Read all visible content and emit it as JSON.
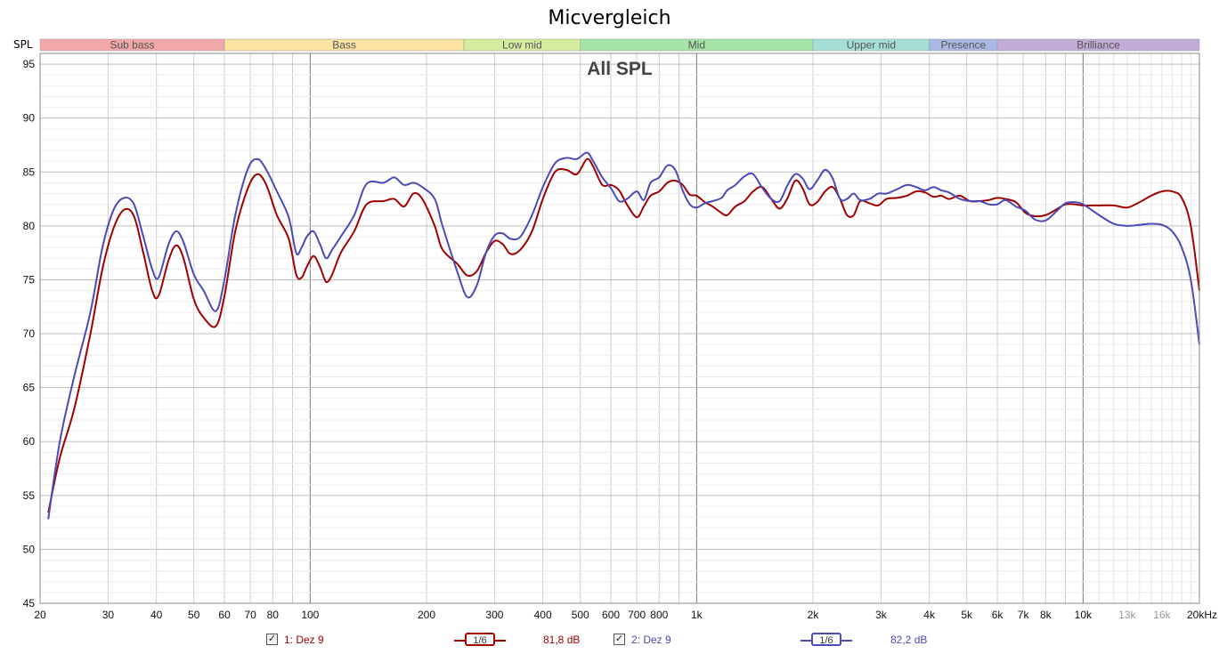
{
  "title": "Micvergleich",
  "y_axis_label": "SPL",
  "chart_data": {
    "type": "line",
    "title": "Micvergleich",
    "subtitle": "All SPL",
    "ylabel": "SPL",
    "xscale": "log",
    "xlim": [
      20,
      20000
    ],
    "ylim": [
      45,
      96
    ],
    "grid": true,
    "yticks": [
      45,
      50,
      55,
      60,
      65,
      70,
      75,
      80,
      85,
      90,
      95
    ],
    "xticks": [
      {
        "v": 20,
        "label": "20"
      },
      {
        "v": 30,
        "label": "30"
      },
      {
        "v": 40,
        "label": "40"
      },
      {
        "v": 50,
        "label": "50"
      },
      {
        "v": 60,
        "label": "60"
      },
      {
        "v": 70,
        "label": "70"
      },
      {
        "v": 80,
        "label": "80"
      },
      {
        "v": 100,
        "label": "100"
      },
      {
        "v": 200,
        "label": "200"
      },
      {
        "v": 300,
        "label": "300"
      },
      {
        "v": 400,
        "label": "400"
      },
      {
        "v": 500,
        "label": "500"
      },
      {
        "v": 600,
        "label": "600"
      },
      {
        "v": 700,
        "label": "700"
      },
      {
        "v": 800,
        "label": "800"
      },
      {
        "v": 1000,
        "label": "1k"
      },
      {
        "v": 2000,
        "label": "2k"
      },
      {
        "v": 3000,
        "label": "3k"
      },
      {
        "v": 4000,
        "label": "4k"
      },
      {
        "v": 5000,
        "label": "5k"
      },
      {
        "v": 6000,
        "label": "6k"
      },
      {
        "v": 7000,
        "label": "7k"
      },
      {
        "v": 8000,
        "label": "8k"
      },
      {
        "v": 10000,
        "label": "10k"
      },
      {
        "v": 13000,
        "label": "13k"
      },
      {
        "v": 16000,
        "label": "16k"
      },
      {
        "v": 20000,
        "label": "20kHz"
      }
    ],
    "bands": [
      {
        "name": "Sub bass",
        "from": 20,
        "to": 60,
        "color": "#f2a8a8"
      },
      {
        "name": "Bass",
        "from": 60,
        "to": 250,
        "color": "#fbe3a0"
      },
      {
        "name": "Low mid",
        "from": 250,
        "to": 500,
        "color": "#d6eda0"
      },
      {
        "name": "Mid",
        "from": 500,
        "to": 2000,
        "color": "#a4e4a6"
      },
      {
        "name": "Upper mid",
        "from": 2000,
        "to": 4000,
        "color": "#a6dfd6"
      },
      {
        "name": "Presence",
        "from": 4000,
        "to": 6000,
        "color": "#a8b8e2"
      },
      {
        "name": "Brilliance",
        "from": 6000,
        "to": 20000,
        "color": "#c2acd6"
      }
    ],
    "series": [
      {
        "name": "1: Dez 9",
        "color": "#a00000",
        "avg_label": "81,8 dB",
        "points": [
          [
            21,
            53.4
          ],
          [
            22.5,
            58.5
          ],
          [
            24.5,
            63
          ],
          [
            27,
            70
          ],
          [
            29,
            76
          ],
          [
            31,
            79.8
          ],
          [
            33,
            81.5
          ],
          [
            35,
            80.9
          ],
          [
            37,
            77.5
          ],
          [
            39,
            74
          ],
          [
            40.5,
            73.5
          ],
          [
            43,
            76.8
          ],
          [
            45,
            78.2
          ],
          [
            47,
            77
          ],
          [
            50,
            73.2
          ],
          [
            53,
            71.5
          ],
          [
            57,
            70.7
          ],
          [
            60,
            73.5
          ],
          [
            64,
            79.5
          ],
          [
            69,
            83.5
          ],
          [
            73,
            84.8
          ],
          [
            77,
            83.8
          ],
          [
            82,
            81
          ],
          [
            88,
            78.8
          ],
          [
            92,
            75.5
          ],
          [
            95,
            75.2
          ],
          [
            98,
            76.2
          ],
          [
            102,
            77.2
          ],
          [
            106,
            76.2
          ],
          [
            110,
            74.8
          ],
          [
            114,
            75.5
          ],
          [
            120,
            77.5
          ],
          [
            130,
            79.5
          ],
          [
            140,
            82
          ],
          [
            155,
            82.3
          ],
          [
            165,
            82.5
          ],
          [
            175,
            81.8
          ],
          [
            185,
            83
          ],
          [
            195,
            82.5
          ],
          [
            210,
            80
          ],
          [
            220,
            77.8
          ],
          [
            240,
            76.5
          ],
          [
            255,
            75.4
          ],
          [
            270,
            75.8
          ],
          [
            285,
            77.5
          ],
          [
            300,
            78.6
          ],
          [
            315,
            78.3
          ],
          [
            330,
            77.4
          ],
          [
            350,
            77.8
          ],
          [
            375,
            79.5
          ],
          [
            400,
            82.5
          ],
          [
            430,
            85
          ],
          [
            460,
            85.2
          ],
          [
            490,
            84.8
          ],
          [
            520,
            86.2
          ],
          [
            540,
            85.5
          ],
          [
            570,
            83.8
          ],
          [
            600,
            83.8
          ],
          [
            630,
            83.3
          ],
          [
            660,
            82
          ],
          [
            700,
            80.8
          ],
          [
            730,
            81.8
          ],
          [
            760,
            82.8
          ],
          [
            800,
            83.2
          ],
          [
            840,
            84
          ],
          [
            880,
            84.2
          ],
          [
            920,
            83.8
          ],
          [
            960,
            82.9
          ],
          [
            1000,
            82.8
          ],
          [
            1050,
            82.2
          ],
          [
            1100,
            81.8
          ],
          [
            1160,
            81.2
          ],
          [
            1200,
            81
          ],
          [
            1260,
            81.8
          ],
          [
            1330,
            82.3
          ],
          [
            1400,
            83.2
          ],
          [
            1480,
            83.6
          ],
          [
            1560,
            82.5
          ],
          [
            1640,
            81.6
          ],
          [
            1720,
            82.6
          ],
          [
            1800,
            84.2
          ],
          [
            1880,
            83.5
          ],
          [
            1960,
            82
          ],
          [
            2050,
            82.2
          ],
          [
            2150,
            83.2
          ],
          [
            2250,
            83.6
          ],
          [
            2350,
            82.5
          ],
          [
            2450,
            81
          ],
          [
            2550,
            81
          ],
          [
            2650,
            82.3
          ],
          [
            2800,
            82.1
          ],
          [
            2950,
            81.9
          ],
          [
            3100,
            82.5
          ],
          [
            3300,
            82.6
          ],
          [
            3500,
            82.8
          ],
          [
            3700,
            83.2
          ],
          [
            3900,
            83.1
          ],
          [
            4100,
            82.7
          ],
          [
            4300,
            82.8
          ],
          [
            4500,
            82.5
          ],
          [
            4800,
            82.8
          ],
          [
            5100,
            82.3
          ],
          [
            5400,
            82.3
          ],
          [
            5700,
            82.4
          ],
          [
            6000,
            82.6
          ],
          [
            6300,
            82.5
          ],
          [
            6700,
            82.2
          ],
          [
            7100,
            81.2
          ],
          [
            7500,
            80.9
          ],
          [
            8000,
            81
          ],
          [
            8500,
            81.5
          ],
          [
            9000,
            82
          ],
          [
            9500,
            82
          ],
          [
            10000,
            81.9
          ],
          [
            11000,
            81.9
          ],
          [
            12000,
            81.9
          ],
          [
            13000,
            81.7
          ],
          [
            14000,
            82.2
          ],
          [
            15000,
            82.8
          ],
          [
            16000,
            83.2
          ],
          [
            17000,
            83.2
          ],
          [
            18000,
            82.6
          ],
          [
            19000,
            80
          ],
          [
            20000,
            74
          ]
        ]
      },
      {
        "name": "2: Dez 9",
        "color": "#4a4ab8",
        "avg_label": "82,2 dB",
        "points": [
          [
            21,
            52.8
          ],
          [
            22.5,
            60
          ],
          [
            24.5,
            66
          ],
          [
            27,
            72
          ],
          [
            29,
            78
          ],
          [
            31,
            81.5
          ],
          [
            33,
            82.6
          ],
          [
            35,
            82
          ],
          [
            37,
            79
          ],
          [
            39,
            76
          ],
          [
            40.5,
            75.2
          ],
          [
            43,
            78.3
          ],
          [
            45,
            79.5
          ],
          [
            47,
            78.5
          ],
          [
            50,
            75.5
          ],
          [
            53,
            74
          ],
          [
            57,
            72.1
          ],
          [
            60,
            75
          ],
          [
            64,
            81
          ],
          [
            69,
            85.3
          ],
          [
            73,
            86.2
          ],
          [
            77,
            85.2
          ],
          [
            82,
            83.2
          ],
          [
            88,
            80.8
          ],
          [
            92,
            77.5
          ],
          [
            95,
            78
          ],
          [
            98,
            79
          ],
          [
            102,
            79.5
          ],
          [
            106,
            78.3
          ],
          [
            110,
            77
          ],
          [
            114,
            77.8
          ],
          [
            120,
            79
          ],
          [
            130,
            81
          ],
          [
            140,
            83.9
          ],
          [
            155,
            84
          ],
          [
            165,
            84.5
          ],
          [
            175,
            83.8
          ],
          [
            185,
            84
          ],
          [
            195,
            83.6
          ],
          [
            210,
            82.5
          ],
          [
            220,
            80
          ],
          [
            240,
            75.8
          ],
          [
            255,
            73.4
          ],
          [
            270,
            74.5
          ],
          [
            285,
            77.5
          ],
          [
            300,
            79.1
          ],
          [
            315,
            79.3
          ],
          [
            330,
            78.8
          ],
          [
            350,
            79
          ],
          [
            375,
            81
          ],
          [
            400,
            83.6
          ],
          [
            430,
            85.8
          ],
          [
            460,
            86.3
          ],
          [
            490,
            86.2
          ],
          [
            520,
            86.8
          ],
          [
            540,
            86
          ],
          [
            570,
            84.5
          ],
          [
            600,
            83.5
          ],
          [
            630,
            82.3
          ],
          [
            660,
            82.5
          ],
          [
            700,
            83.2
          ],
          [
            730,
            82.4
          ],
          [
            760,
            84
          ],
          [
            800,
            84.5
          ],
          [
            840,
            85.6
          ],
          [
            880,
            85.2
          ],
          [
            920,
            83.3
          ],
          [
            960,
            82
          ],
          [
            1000,
            81.7
          ],
          [
            1050,
            82.1
          ],
          [
            1100,
            82.3
          ],
          [
            1160,
            82.6
          ],
          [
            1200,
            83.3
          ],
          [
            1260,
            83.8
          ],
          [
            1330,
            84.6
          ],
          [
            1400,
            84.8
          ],
          [
            1480,
            83.5
          ],
          [
            1560,
            82.5
          ],
          [
            1640,
            82.3
          ],
          [
            1720,
            83.8
          ],
          [
            1800,
            84.8
          ],
          [
            1880,
            84.4
          ],
          [
            1960,
            83.4
          ],
          [
            2050,
            84.2
          ],
          [
            2150,
            85.2
          ],
          [
            2250,
            84.4
          ],
          [
            2350,
            82.5
          ],
          [
            2450,
            82.5
          ],
          [
            2550,
            83
          ],
          [
            2650,
            82.4
          ],
          [
            2800,
            82.5
          ],
          [
            2950,
            83
          ],
          [
            3100,
            83
          ],
          [
            3300,
            83.4
          ],
          [
            3500,
            83.8
          ],
          [
            3700,
            83.6
          ],
          [
            3900,
            83.3
          ],
          [
            4100,
            83.6
          ],
          [
            4300,
            83.3
          ],
          [
            4500,
            83.1
          ],
          [
            4800,
            82.5
          ],
          [
            5100,
            82.3
          ],
          [
            5400,
            82.3
          ],
          [
            5700,
            82
          ],
          [
            6000,
            82
          ],
          [
            6300,
            82.4
          ],
          [
            6700,
            81.8
          ],
          [
            7100,
            81.4
          ],
          [
            7500,
            80.6
          ],
          [
            8000,
            80.5
          ],
          [
            8500,
            81.3
          ],
          [
            9000,
            82.1
          ],
          [
            9500,
            82.2
          ],
          [
            10000,
            82
          ],
          [
            11000,
            81
          ],
          [
            12000,
            80.2
          ],
          [
            13000,
            80
          ],
          [
            14000,
            80.1
          ],
          [
            15000,
            80.2
          ],
          [
            16000,
            80.1
          ],
          [
            17000,
            79.5
          ],
          [
            18000,
            78
          ],
          [
            19000,
            75
          ],
          [
            20000,
            69
          ]
        ]
      }
    ]
  },
  "legend": {
    "items": [
      {
        "label": "1: Dez 9",
        "checked": true,
        "smoothing": "1/6",
        "avg": "81,8 dB",
        "color": "#a00000"
      },
      {
        "label": "2: Dez 9",
        "checked": true,
        "smoothing": "1/6",
        "avg": "82,2 dB",
        "color": "#4a4ab8"
      }
    ]
  }
}
